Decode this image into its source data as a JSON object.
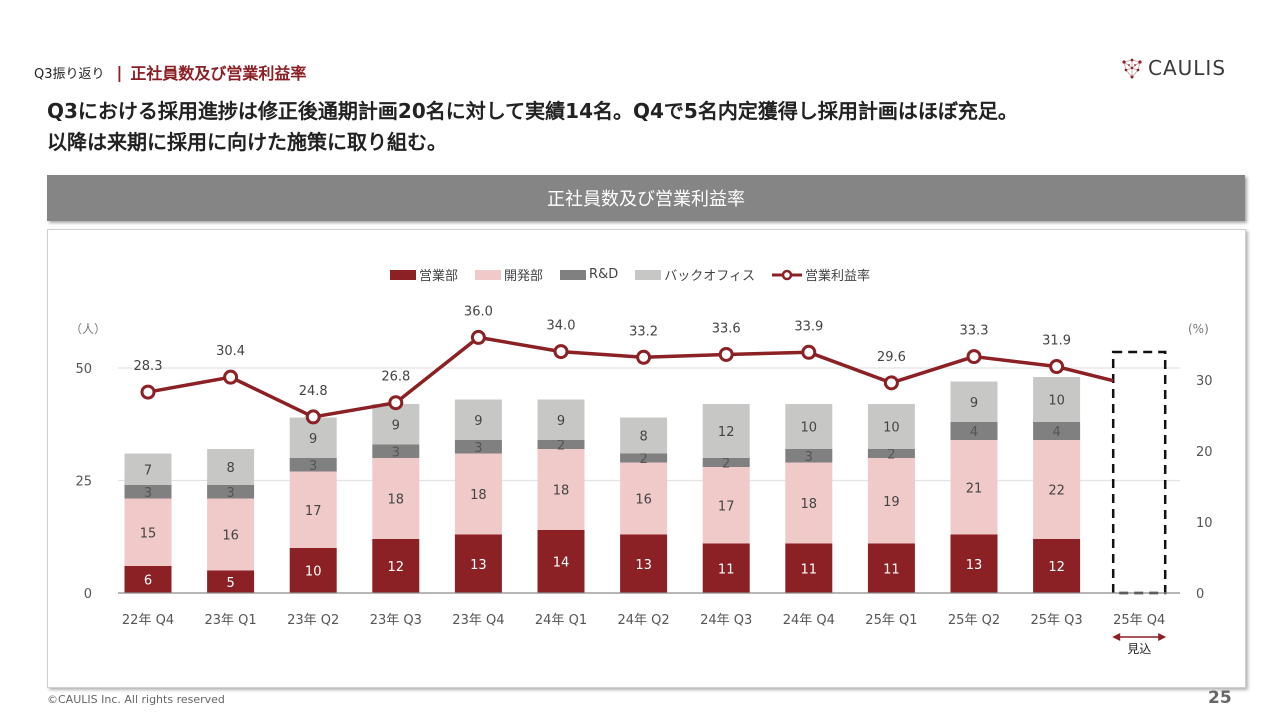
{
  "header": {
    "section": "Q3振り返り",
    "separator": "|",
    "topic": "正社員数及び営業利益率",
    "logo_text": "CAULIS",
    "logo_icon": "network-heart-icon"
  },
  "headline": {
    "line1": "Q3における採用進捗は修正後通期計画20名に対して実績14名。Q4で5名内定獲得し採用計画はほぼ充足。",
    "line2": "以降は来期に採用に向けた施策に取り組む。"
  },
  "banner": {
    "title": "正社員数及び営業利益率"
  },
  "colors": {
    "accent": "#8b1f24",
    "sales": "#8b2025",
    "dev": "#f0c9c9",
    "rnd": "#808080",
    "backoffice": "#c7c8c6",
    "line": "#8b2025",
    "banner": "#858585"
  },
  "chart_data": {
    "type": "bar",
    "stacked": true,
    "title": "正社員数及び営業利益率",
    "categories": [
      "22年 Q4",
      "23年 Q1",
      "23年 Q2",
      "23年 Q3",
      "23年 Q4",
      "24年 Q1",
      "24年 Q2",
      "24年 Q3",
      "24年 Q4",
      "25年 Q1",
      "25年 Q2",
      "25年 Q3",
      "25年 Q4"
    ],
    "series": [
      {
        "name": "営業部",
        "color": "#8b2025",
        "values": [
          6,
          5,
          10,
          12,
          13,
          14,
          13,
          11,
          11,
          11,
          13,
          12,
          null
        ]
      },
      {
        "name": "開発部",
        "color": "#f0c9c9",
        "values": [
          15,
          16,
          17,
          18,
          18,
          18,
          16,
          17,
          18,
          19,
          21,
          22,
          null
        ]
      },
      {
        "name": "R&D",
        "color": "#808080",
        "values": [
          3,
          3,
          3,
          3,
          3,
          2,
          2,
          2,
          3,
          2,
          4,
          4,
          null
        ]
      },
      {
        "name": "バックオフィス",
        "color": "#c7c8c6",
        "values": [
          7,
          8,
          9,
          9,
          9,
          9,
          8,
          12,
          10,
          10,
          9,
          10,
          null
        ]
      }
    ],
    "line_series": {
      "name": "営業利益率",
      "axis": "right",
      "color": "#8b2025",
      "values": [
        28.3,
        30.4,
        24.8,
        26.8,
        36.0,
        34.0,
        33.2,
        33.6,
        33.9,
        29.6,
        33.3,
        31.9,
        null
      ],
      "labels": [
        "28.3",
        "30.4",
        "24.8",
        "26.8",
        "36.0",
        "34.0",
        "33.2",
        "33.6",
        "33.9",
        "29.6",
        "33.3",
        "31.9",
        ""
      ]
    },
    "forecast": {
      "category": "25年 Q4",
      "label": "見込",
      "style": "dashed-outline"
    },
    "y_left": {
      "label": "（人）",
      "ticks": [
        "0",
        "25",
        "50"
      ],
      "tick_values": [
        0,
        25,
        50
      ],
      "range": [
        0,
        50
      ]
    },
    "y_right": {
      "label": "(%)",
      "ticks": [
        "0",
        "10",
        "20",
        "30"
      ],
      "tick_values": [
        0,
        10,
        20,
        30
      ],
      "range": [
        0,
        30
      ]
    },
    "grid": true,
    "legend_position": "top-center"
  },
  "legend": {
    "items": [
      {
        "label": "営業部",
        "kind": "bar",
        "color": "#8b2025"
      },
      {
        "label": "開発部",
        "kind": "bar",
        "color": "#f0c9c9"
      },
      {
        "label": "R&D",
        "kind": "bar",
        "color": "#808080"
      },
      {
        "label": "バックオフィス",
        "kind": "bar",
        "color": "#c7c8c6"
      },
      {
        "label": "営業利益率",
        "kind": "line",
        "color": "#8b2025"
      }
    ]
  },
  "footer": {
    "copyright": "©CAULIS Inc. All rights reserved",
    "page_number": "25"
  }
}
